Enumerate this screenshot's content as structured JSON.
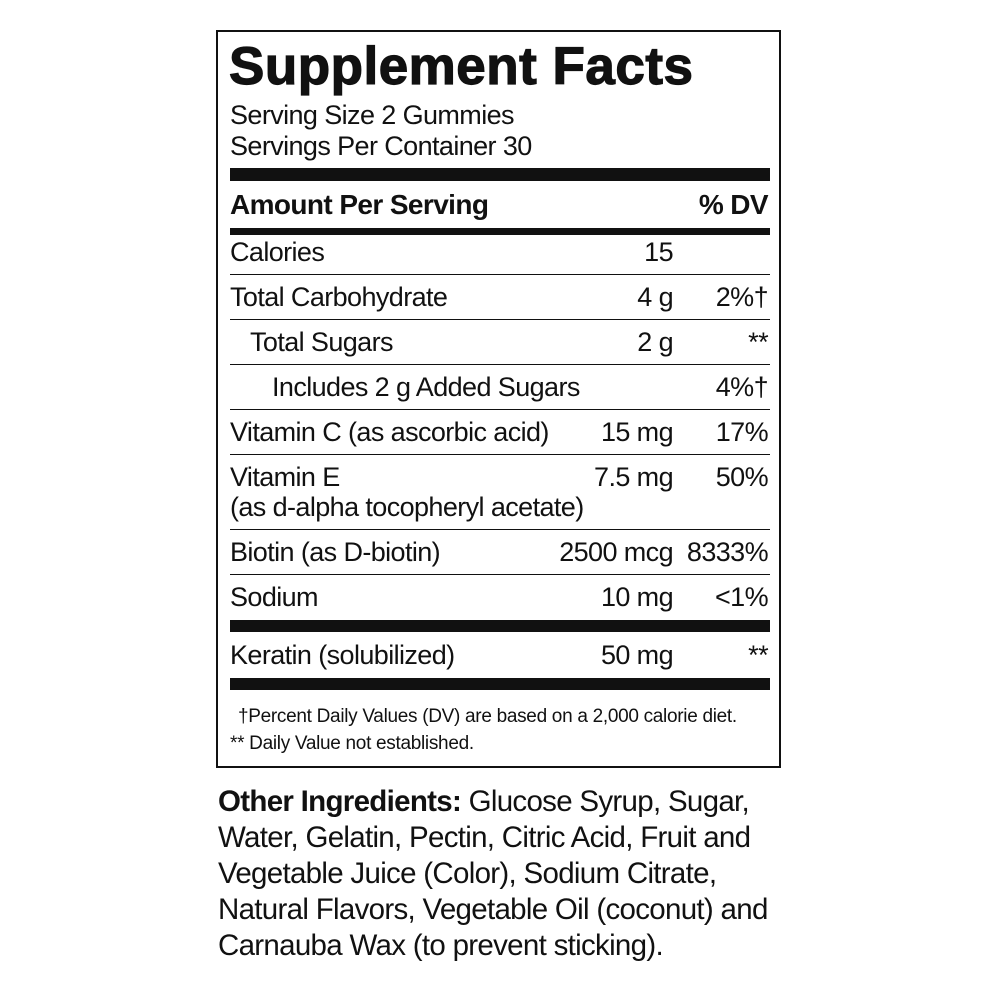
{
  "title": "Supplement Facts",
  "serving_size": "Serving Size 2 Gummies",
  "servings_per_container": "Servings Per Container 30",
  "header": {
    "amount": "Amount Per Serving",
    "dv": "% DV"
  },
  "rows": [
    {
      "name": "Calories",
      "amount": "15",
      "dv": ""
    },
    {
      "name": "Total Carbohydrate",
      "amount": "4 g",
      "dv": "2%†"
    },
    {
      "name": "Total Sugars",
      "amount": "2 g",
      "dv": "**"
    },
    {
      "name": "Includes 2 g Added Sugars",
      "amount": "",
      "dv": "4%†"
    },
    {
      "name": "Vitamin C (as ascorbic acid)",
      "amount": "15 mg",
      "dv": "17%"
    },
    {
      "name": "Vitamin E",
      "name2": "(as d-alpha tocopheryl acetate)",
      "amount": "7.5 mg",
      "dv": "50%"
    },
    {
      "name": "Biotin (as D-biotin)",
      "amount": "2500 mcg",
      "dv": "8333%"
    },
    {
      "name": "Sodium",
      "amount": "10 mg",
      "dv": "<1%"
    },
    {
      "name": "Keratin (solubilized)",
      "amount": "50 mg",
      "dv": "**"
    }
  ],
  "footnotes": [
    "†Percent Daily Values (DV) are based on a 2,000 calorie diet.",
    "** Daily Value not established."
  ],
  "other_ingredients": {
    "label": "Other Ingredients:",
    "text": " Glucose Syrup, Sugar, Water, Gelatin, Pectin, Citric Acid, Fruit and Vegetable Juice (Color), Sodium Citrate, Natural Flavors, Vegetable Oil (coconut) and Carnauba Wax (to prevent sticking)."
  }
}
